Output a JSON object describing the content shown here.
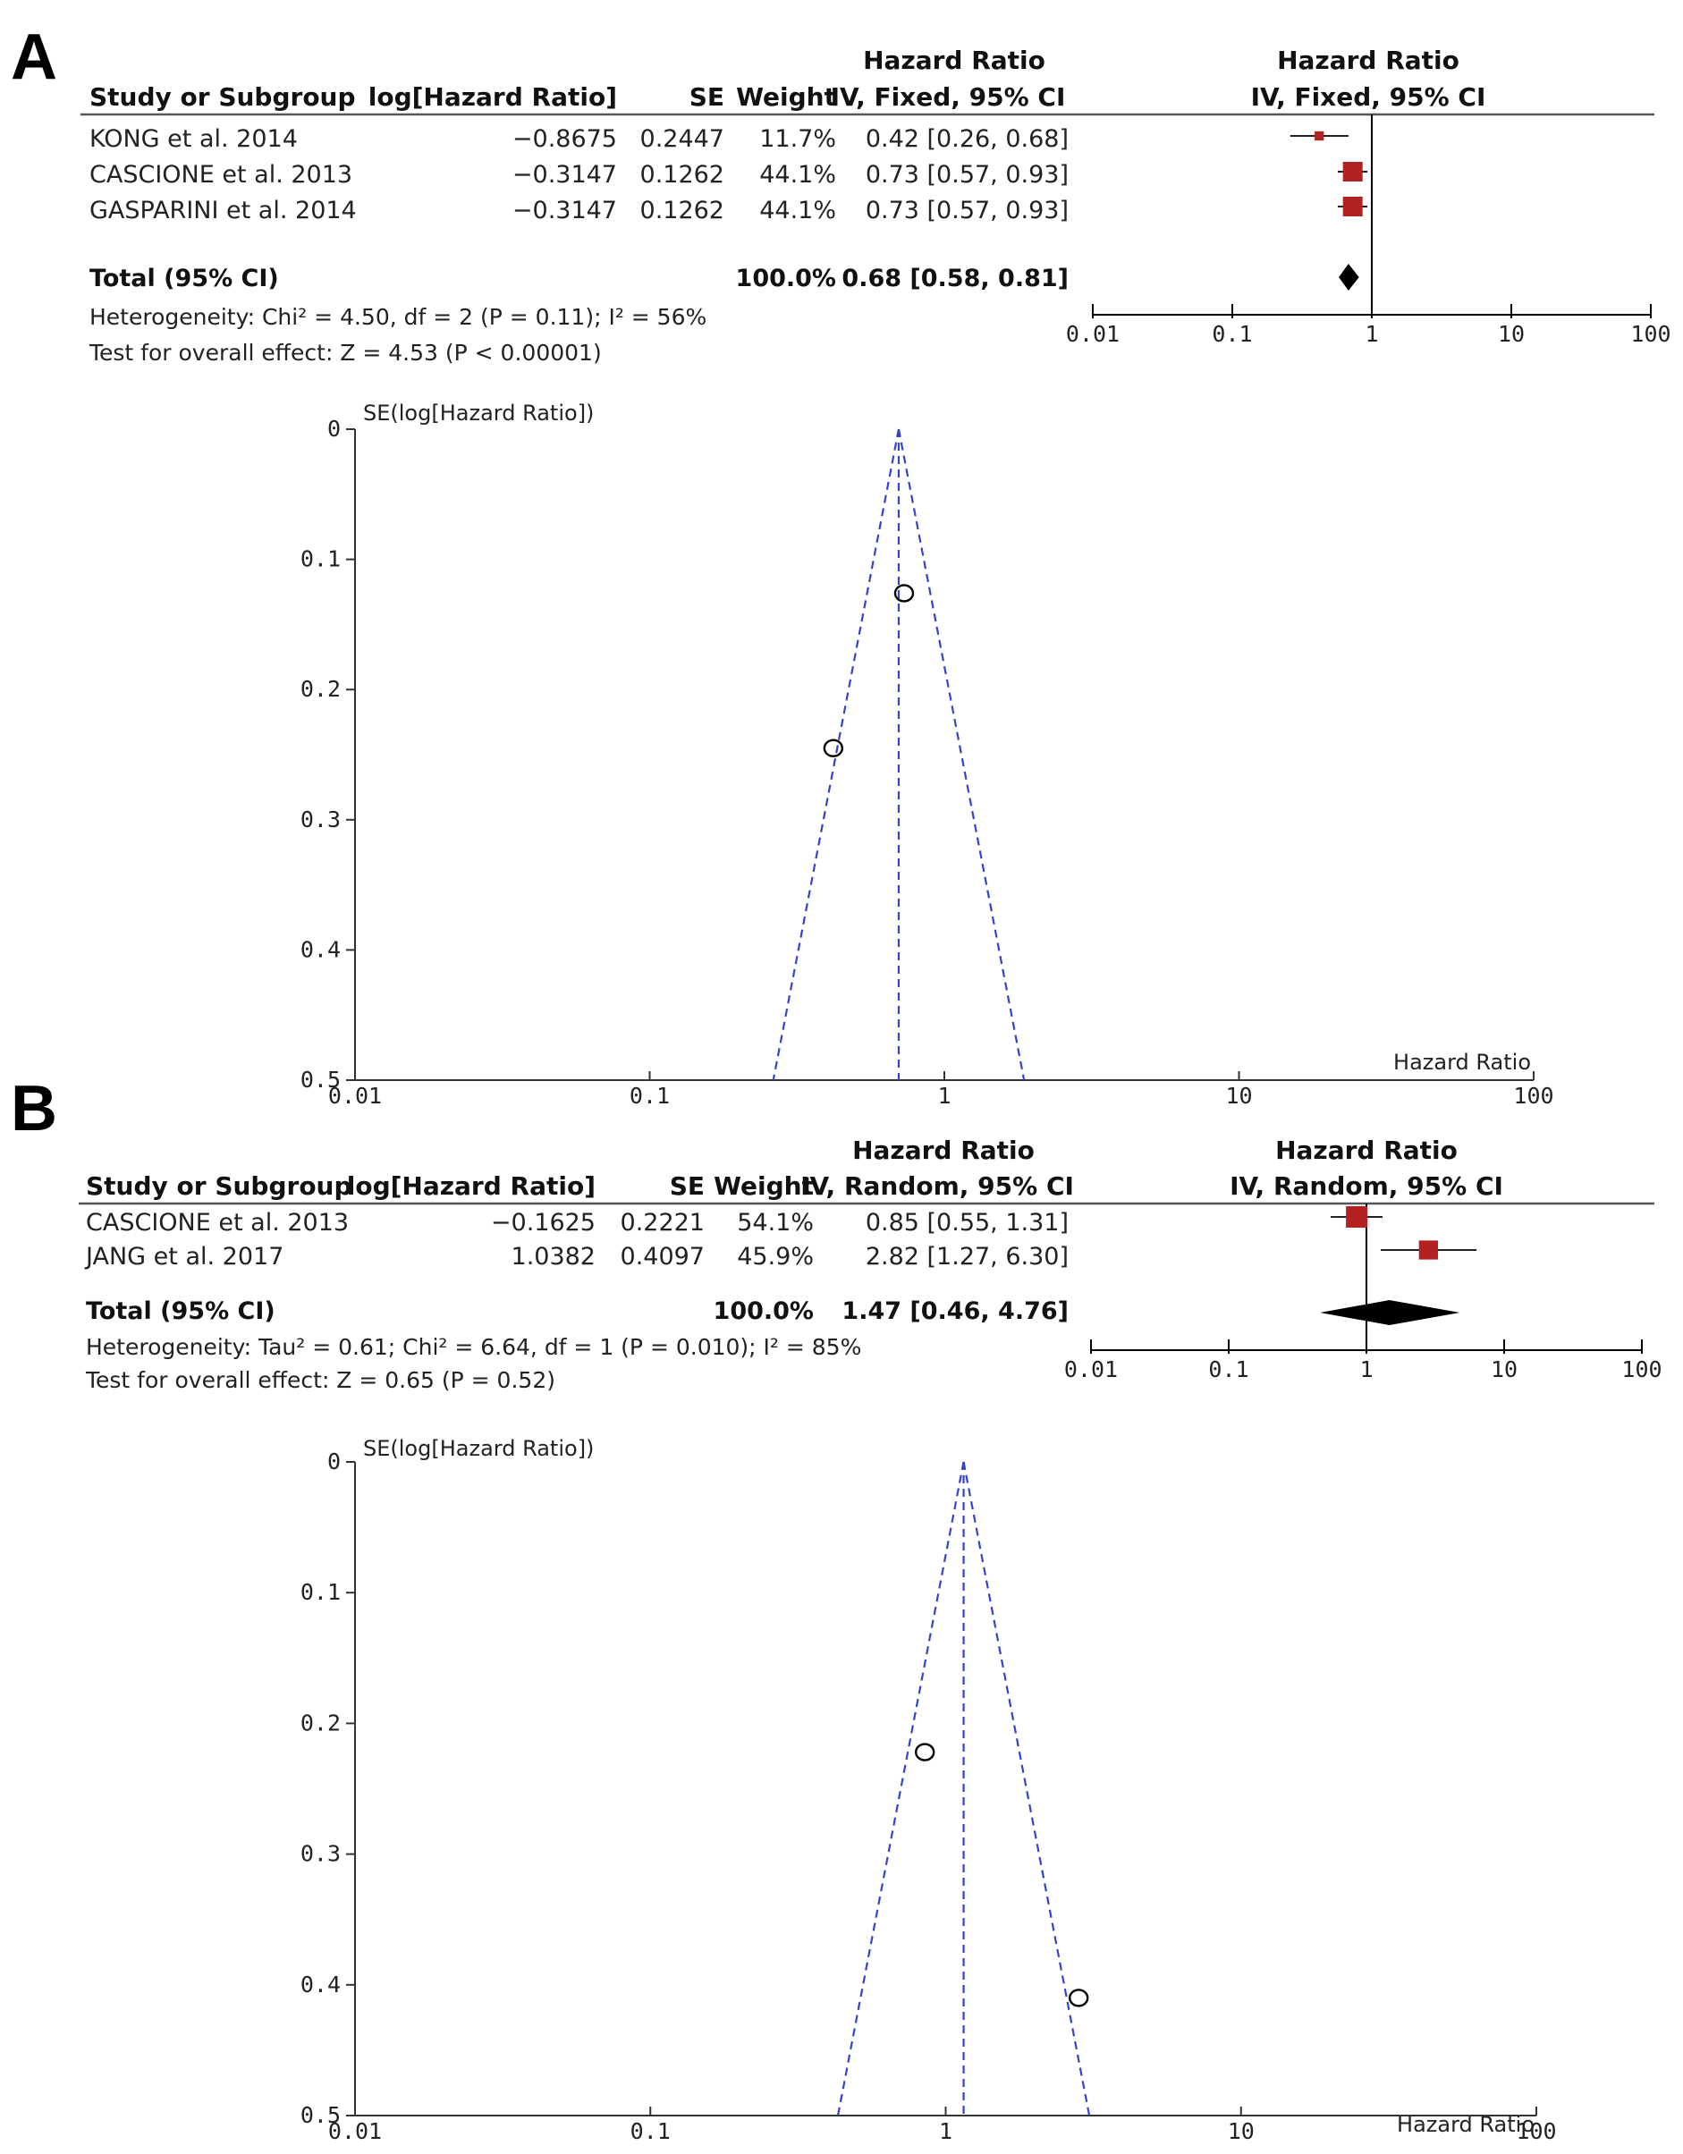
{
  "chart_data": [
    {
      "panel": "A",
      "type": "table",
      "title": "Forest plot",
      "columns": [
        "Study or Subgroup",
        "log[Hazard Ratio]",
        "SE",
        "Weight",
        "IV, Fixed, 95% CI"
      ],
      "header_top": "Hazard Ratio",
      "plot_header_top": "Hazard Ratio",
      "plot_header_bottom": "IV, Fixed, 95% CI",
      "studies": [
        {
          "name": "KONG et al. 2014",
          "log_hr": "−0.8675",
          "se": "0.2447",
          "weight": "11.7%",
          "ci_text": "0.42 [0.26, 0.68]",
          "hr": 0.42,
          "lo": 0.26,
          "hi": 0.68,
          "w": 11.7
        },
        {
          "name": "CASCIONE et al. 2013",
          "log_hr": "−0.3147",
          "se": "0.1262",
          "weight": "44.1%",
          "ci_text": "0.73 [0.57, 0.93]",
          "hr": 0.73,
          "lo": 0.57,
          "hi": 0.93,
          "w": 44.1
        },
        {
          "name": "GASPARINI et al. 2014",
          "log_hr": "−0.3147",
          "se": "0.1262",
          "weight": "44.1%",
          "ci_text": "0.73 [0.57, 0.93]",
          "hr": 0.73,
          "lo": 0.57,
          "hi": 0.93,
          "w": 44.1
        }
      ],
      "total": {
        "label": "Total (95% CI)",
        "weight": "100.0%",
        "ci_text": "0.68 [0.58, 0.81]",
        "hr": 0.68,
        "lo": 0.58,
        "hi": 0.81
      },
      "heterogeneity": "Heterogeneity: Chi² = 4.50, df = 2 (P = 0.11); I² = 56%",
      "overall_effect": "Test for overall effect: Z = 4.53 (P < 0.00001)",
      "x_scale": "log",
      "xlim": [
        0.01,
        100
      ],
      "x_ticks": [
        "0.01",
        "0.1",
        "1",
        "10",
        "100"
      ]
    },
    {
      "panel": "A",
      "type": "scatter",
      "title": "Funnel plot",
      "ylabel": "SE(log[Hazard Ratio])",
      "xlabel": "Hazard Ratio",
      "x_scale": "log",
      "xlim": [
        0.01,
        100
      ],
      "ylim": [
        0,
        0.5
      ],
      "x_ticks": [
        "0.01",
        "0.1",
        "1",
        "10",
        "100"
      ],
      "y_ticks": [
        "0",
        "0.1",
        "0.2",
        "0.3",
        "0.4",
        "0.5"
      ],
      "pooled_hr": 0.7,
      "points": [
        {
          "hr": 0.73,
          "se": 0.126
        },
        {
          "hr": 0.42,
          "se": 0.245
        }
      ]
    },
    {
      "panel": "B",
      "type": "table",
      "title": "Forest plot",
      "columns": [
        "Study or Subgroup",
        "log[Hazard Ratio]",
        "SE",
        "Weight",
        "IV, Random, 95% CI"
      ],
      "header_top": "Hazard Ratio",
      "plot_header_top": "Hazard Ratio",
      "plot_header_bottom": "IV, Random, 95% CI",
      "studies": [
        {
          "name": "CASCIONE et al. 2013",
          "log_hr": "−0.1625",
          "se": "0.2221",
          "weight": "54.1%",
          "ci_text": "0.85 [0.55, 1.31]",
          "hr": 0.85,
          "lo": 0.55,
          "hi": 1.31,
          "w": 54.1
        },
        {
          "name": "JANG et al. 2017",
          "log_hr": "1.0382",
          "se": "0.4097",
          "weight": "45.9%",
          "ci_text": "2.82 [1.27, 6.30]",
          "hr": 2.82,
          "lo": 1.27,
          "hi": 6.3,
          "w": 45.9
        }
      ],
      "total": {
        "label": "Total (95% CI)",
        "weight": "100.0%",
        "ci_text": "1.47 [0.46, 4.76]",
        "hr": 1.47,
        "lo": 0.46,
        "hi": 4.76
      },
      "heterogeneity": "Heterogeneity: Tau² = 0.61; Chi² = 6.64, df = 1 (P = 0.010); I² = 85%",
      "overall_effect": "Test for overall effect: Z = 0.65 (P = 0.52)",
      "x_scale": "log",
      "xlim": [
        0.01,
        100
      ],
      "x_ticks": [
        "0.01",
        "0.1",
        "1",
        "10",
        "100"
      ]
    },
    {
      "panel": "B",
      "type": "scatter",
      "title": "Funnel plot",
      "ylabel": "SE(log[Hazard Ratio])",
      "xlabel": "Hazard Ratio",
      "x_scale": "log",
      "xlim": [
        0.01,
        100
      ],
      "ylim": [
        0,
        0.5
      ],
      "x_ticks": [
        "0.01",
        "0.1",
        "1",
        "10",
        "100"
      ],
      "y_ticks": [
        "0",
        "0.1",
        "0.2",
        "0.3",
        "0.4",
        "0.5"
      ],
      "pooled_hr": 1.15,
      "points": [
        {
          "hr": 0.85,
          "se": 0.222
        },
        {
          "hr": 2.82,
          "se": 0.41
        }
      ]
    }
  ],
  "panels": {
    "a_letter": "A",
    "b_letter": "B"
  },
  "colors": {
    "marker": "#b22222",
    "funnel": "#3344cc",
    "diamond": "#000000",
    "axis": "#333333"
  }
}
